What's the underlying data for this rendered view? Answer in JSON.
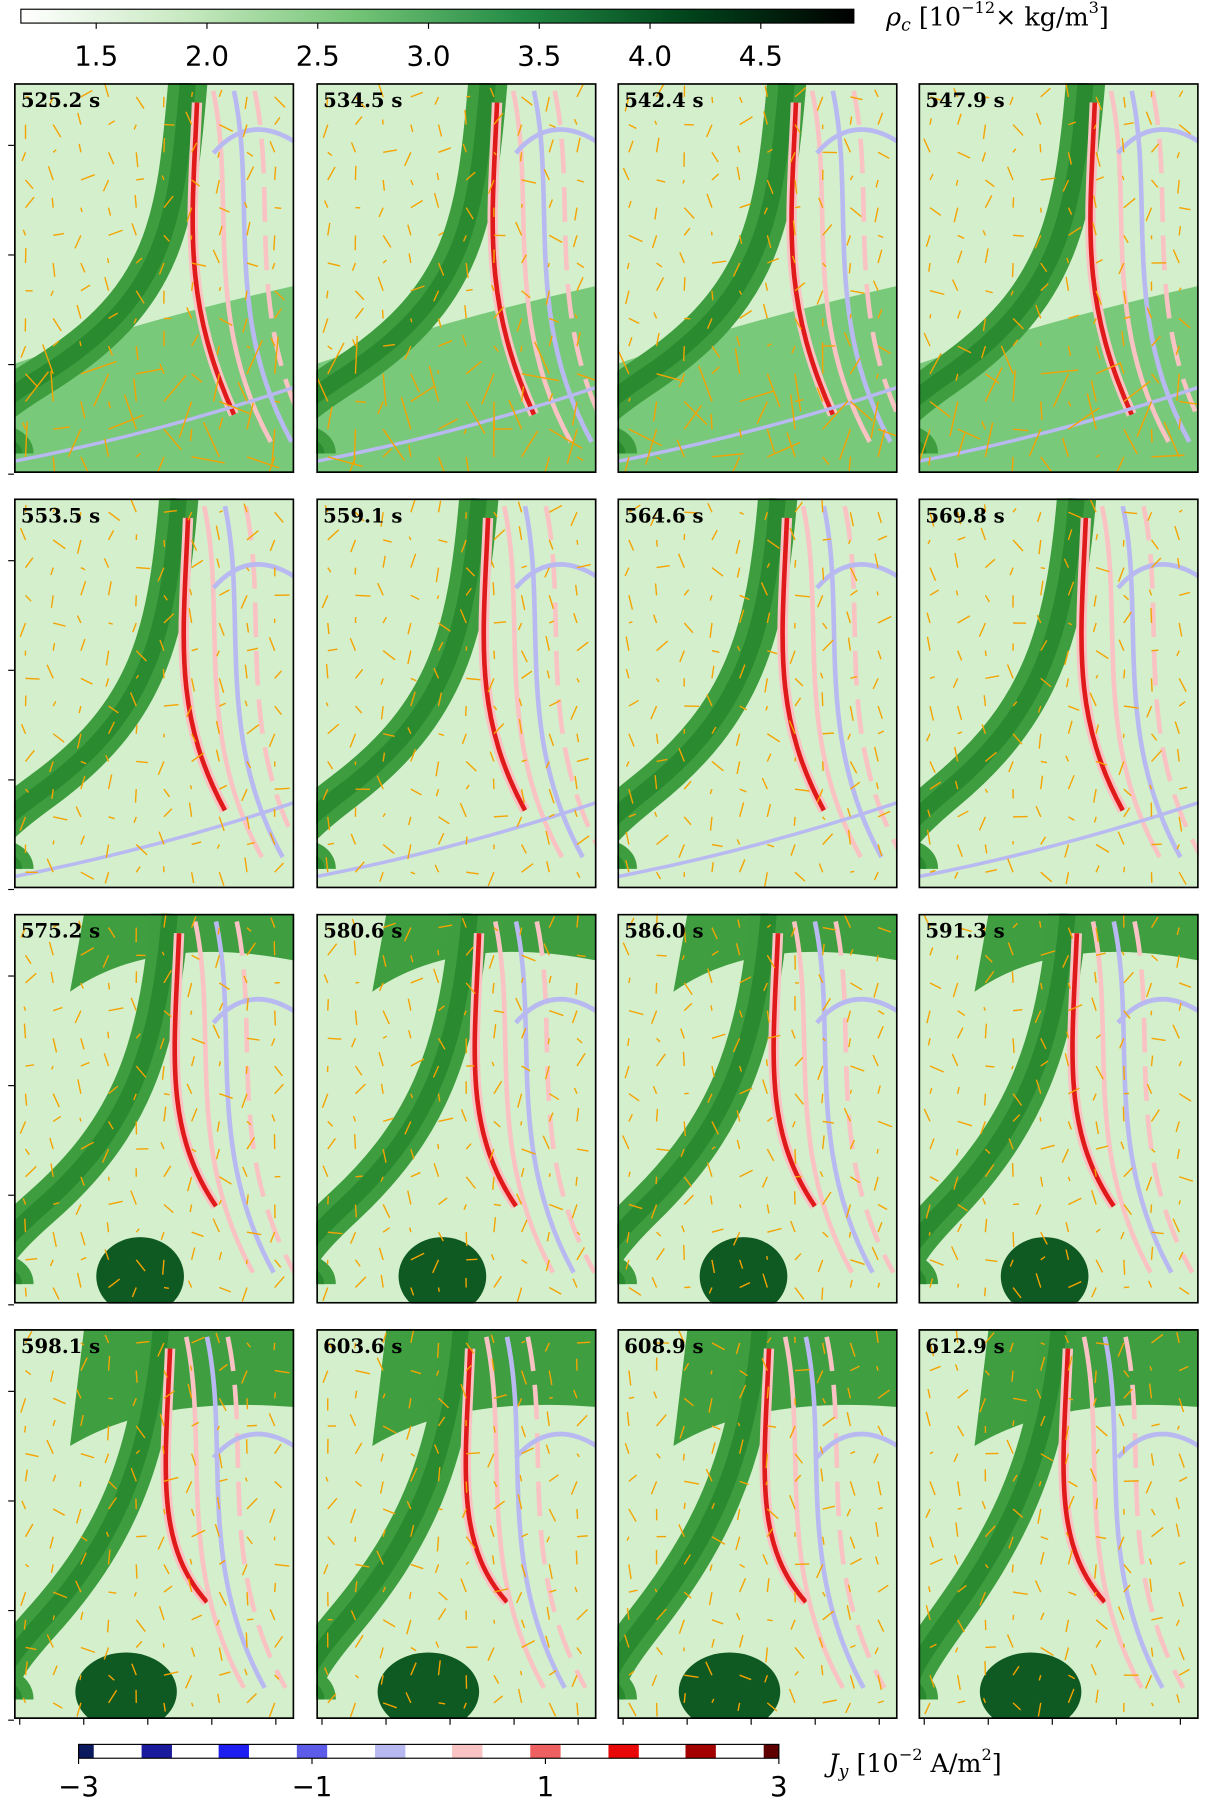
{
  "chart_data": {
    "type": "heatmap",
    "panels": [
      "525.2 s",
      "534.5 s",
      "542.4 s",
      "547.9 s",
      "553.5 s",
      "559.1 s",
      "564.6 s",
      "569.8 s",
      "575.2 s",
      "580.6 s",
      "586.0 s",
      "591.3 s",
      "598.1 s",
      "603.6 s",
      "608.9 s",
      "612.9 s"
    ],
    "rho_colorbar": {
      "label": [
        "ρ",
        "c",
        " [10",
        "−12",
        "× kg/m",
        "3",
        "]"
      ],
      "lim": [
        1.16,
        4.92
      ],
      "ticks": [
        1.5,
        {
          "value": 2,
          "label": "2.0"
        },
        2.5,
        {
          "value": 3,
          "label": "3.0"
        },
        3.5,
        {
          "value": 4,
          "label": "4.0"
        },
        4.5
      ],
      "colors": [
        "#ffffff",
        "#c7e9c0",
        "#74c476",
        "#238b45",
        "#00441b",
        "#000000"
      ]
    },
    "jy_colorbar": {
      "label": [
        "J",
        "y",
        " [10",
        "−2",
        " A/m",
        "2",
        "]"
      ],
      "lim": [
        -3,
        3
      ],
      "ticks": [
        {
          "value": -3,
          "label": "−3"
        },
        {
          "value": -1,
          "label": "−1"
        },
        1,
        3
      ],
      "levels": [
        -3,
        -2.33,
        -1.67,
        -1,
        -0.33,
        0.33,
        1,
        1.67,
        2.33,
        3
      ],
      "level_colors": [
        "#0b1a5e",
        "#1a1a9c",
        "#1e1ef0",
        "#5c5ce8",
        "#b9b9f2",
        "#f9c3c3",
        "#ef6060",
        "#e80808",
        "#a30000",
        "#5e0000"
      ]
    }
  }
}
